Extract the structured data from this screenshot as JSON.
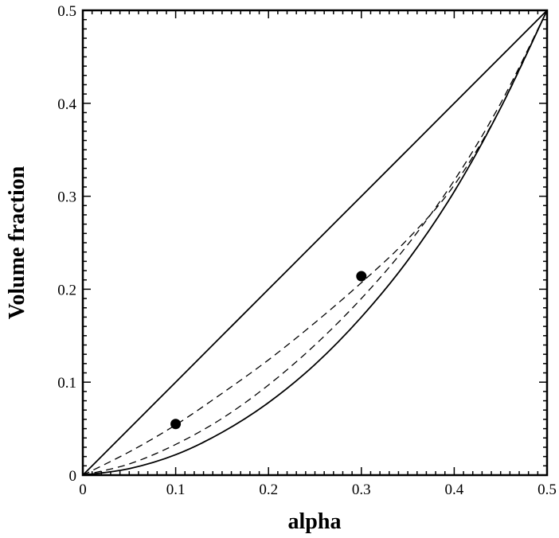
{
  "chart_data": {
    "type": "line",
    "title": "",
    "xlabel": "alpha",
    "ylabel": "Volume fraction",
    "xlim": [
      0,
      0.5
    ],
    "ylim": [
      0,
      0.5
    ],
    "x_ticks": [
      "0",
      "0.1",
      "0.2",
      "0.3",
      "0.4",
      "0.5"
    ],
    "y_ticks": [
      "0",
      "0.1",
      "0.2",
      "0.3",
      "0.4",
      "0.5"
    ],
    "x_tick_values": [
      0,
      0.1,
      0.2,
      0.3,
      0.4,
      0.5
    ],
    "y_tick_values": [
      0,
      0.1,
      0.2,
      0.3,
      0.4,
      0.5
    ],
    "grid": false,
    "legend": "none",
    "series": [
      {
        "style": "solid",
        "color": "#000000",
        "x": [
          0,
          0.05,
          0.1,
          0.15,
          0.2,
          0.25,
          0.3,
          0.35,
          0.4,
          0.45,
          0.5
        ],
        "y": [
          0,
          0.05,
          0.1,
          0.15,
          0.2,
          0.25,
          0.3,
          0.35,
          0.4,
          0.45,
          0.5
        ]
      },
      {
        "style": "solid",
        "color": "#000000",
        "x": [
          0,
          0.05,
          0.1,
          0.15,
          0.2,
          0.25,
          0.3,
          0.35,
          0.4,
          0.45,
          0.5
        ],
        "y": [
          0,
          0.007,
          0.022,
          0.046,
          0.078,
          0.119,
          0.17,
          0.231,
          0.305,
          0.395,
          0.5
        ]
      },
      {
        "style": "dashed",
        "color": "#000000",
        "x": [
          0,
          0.05,
          0.1,
          0.15,
          0.2,
          0.25,
          0.3,
          0.35,
          0.4,
          0.45,
          0.5
        ],
        "y": [
          0,
          0.025,
          0.054,
          0.088,
          0.124,
          0.164,
          0.207,
          0.254,
          0.312,
          0.395,
          0.5
        ]
      },
      {
        "style": "dashed",
        "color": "#000000",
        "x": [
          0,
          0.05,
          0.1,
          0.15,
          0.2,
          0.25,
          0.3,
          0.35,
          0.4,
          0.45,
          0.5
        ],
        "y": [
          0,
          0.012,
          0.033,
          0.061,
          0.097,
          0.14,
          0.19,
          0.248,
          0.317,
          0.4,
          0.5
        ]
      }
    ],
    "points": [
      {
        "x": 0.1,
        "y": 0.055
      },
      {
        "x": 0.3,
        "y": 0.214
      }
    ]
  }
}
